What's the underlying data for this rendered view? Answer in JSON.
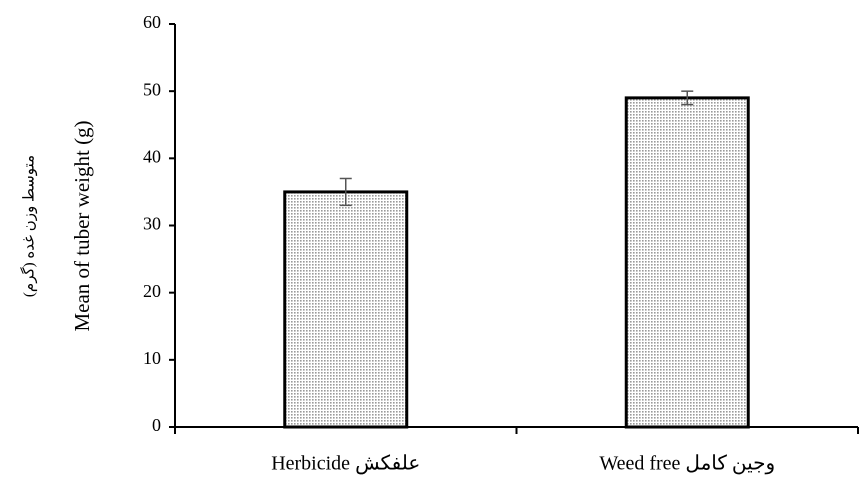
{
  "chart_data": {
    "type": "bar",
    "y_label": [
      "Mean of tuber weight (g)",
      "متوسط وزن غده (گرم)"
    ],
    "categories": [
      "Herbicide  علفکش",
      "Weed free وجین کامل"
    ],
    "values": [
      35,
      49
    ],
    "errors": [
      2,
      1
    ],
    "color": "#9a9a9a",
    "ylim": [
      0,
      60
    ],
    "yticks": [
      0,
      10,
      20,
      30,
      40,
      50,
      60
    ]
  }
}
